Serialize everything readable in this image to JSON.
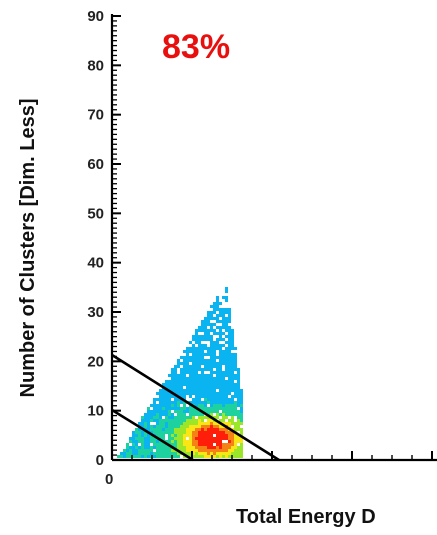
{
  "chart_data": {
    "type": "heatmap",
    "xlabel": "Total Energy D",
    "ylabel": "Number of Clusters [Dim. Less]",
    "ylim": [
      0,
      90
    ],
    "y_ticks": [
      "0",
      "10",
      "20",
      "30",
      "40",
      "50",
      "60",
      "70",
      "80",
      "90"
    ],
    "x_tick_labels": [
      "0"
    ],
    "annotation": "83%",
    "annotation_color": "#e8100e",
    "colors": {
      "low": "#0ab4f0",
      "mid_low": "#1ed2a0",
      "mid": "#9be628",
      "mid_high": "#fae614",
      "high": "#f58214",
      "peak": "#ff1e0a",
      "line": "#000000"
    },
    "density_levels": [
      0.08,
      0.22,
      0.4,
      0.6,
      0.78,
      0.92
    ]
  }
}
